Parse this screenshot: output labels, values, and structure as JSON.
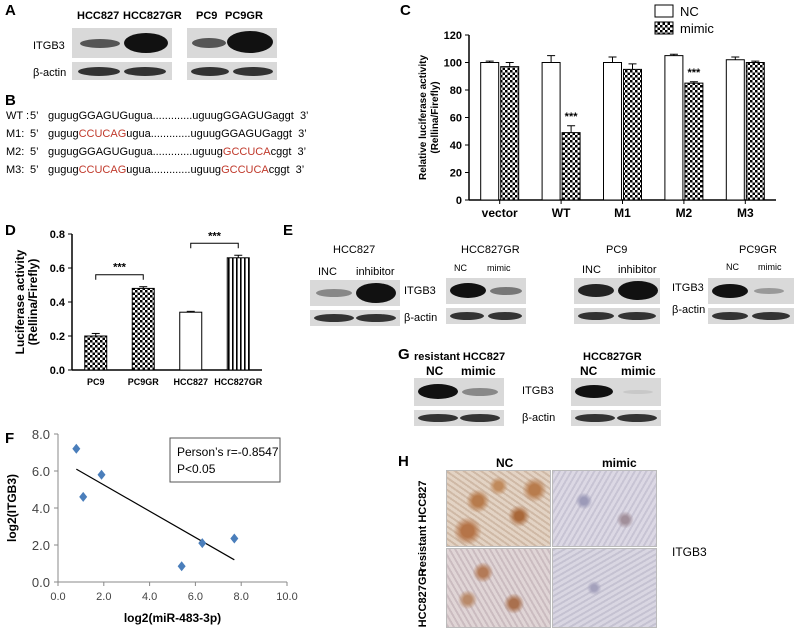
{
  "panelA": {
    "letter": "A",
    "cols": [
      "HCC827",
      "HCC827GR",
      "PC9",
      "PC9GR"
    ],
    "rows": [
      "ITGB3",
      "β-actin"
    ]
  },
  "panelB": {
    "letter": "B",
    "rows": [
      {
        "label": "WT :",
        "p5": "5’",
        "seq": [
          [
            "gugug",
            ""
          ],
          [
            "GGAGU",
            ""
          ],
          [
            "Gugua.............uguug",
            ""
          ],
          [
            "GGAGU",
            ""
          ],
          [
            "Gaggt",
            ""
          ]
        ],
        "p3": "3’"
      },
      {
        "label": "M1:",
        "p5": "5’",
        "seq": [
          [
            "gugug",
            ""
          ],
          [
            "CCUCAG",
            "red"
          ],
          [
            "ugua.............uguug",
            ""
          ],
          [
            "GGAGU",
            ""
          ],
          [
            "Gaggt",
            ""
          ]
        ],
        "p3": "3’"
      },
      {
        "label": "M2:",
        "p5": "5’",
        "seq": [
          [
            "gugug",
            ""
          ],
          [
            "GGAGU",
            ""
          ],
          [
            "Gugua.............uguug",
            ""
          ],
          [
            "GCCUCA",
            "red"
          ],
          [
            "cggt",
            ""
          ]
        ],
        "p3": "3’"
      },
      {
        "label": "M3:",
        "p5": "5’",
        "seq": [
          [
            "gugug",
            ""
          ],
          [
            "CCUCAG",
            "red"
          ],
          [
            "ugua.............uguug",
            ""
          ],
          [
            "GCCUCA",
            "red"
          ],
          [
            "cggt",
            ""
          ]
        ],
        "p3": "3’"
      }
    ]
  },
  "panelC": {
    "letter": "C",
    "chart_data": {
      "type": "bar",
      "categories": [
        "vector",
        "WT",
        "M1",
        "M2",
        "M3"
      ],
      "series": [
        {
          "name": "NC",
          "values": [
            100,
            100,
            100,
            105,
            102
          ],
          "errors": [
            1,
            5,
            4,
            1,
            2
          ]
        },
        {
          "name": "mimic",
          "values": [
            97,
            49,
            95,
            85,
            100
          ],
          "errors": [
            3,
            5,
            4,
            1,
            1
          ]
        }
      ],
      "ylabel": "Relative luciferase activity (Rellina/Firefly)",
      "ylim": [
        0,
        120
      ],
      "yticks": [
        "0",
        "20",
        "40",
        "60",
        "80",
        "100",
        "120"
      ],
      "annotations": [
        "***",
        "***"
      ],
      "legend": "top-right"
    }
  },
  "panelD": {
    "letter": "D",
    "chart_data": {
      "type": "bar",
      "categories": [
        "PC9",
        "PC9GR",
        "HCC827",
        "HCC827GR"
      ],
      "values": [
        0.2,
        0.48,
        0.34,
        0.66
      ],
      "errors": [
        0.015,
        0.01,
        0.005,
        0.015
      ],
      "ylabel": "Luciferase activity (Rellina/Firefly)",
      "ylim": [
        0,
        0.8
      ],
      "yticks": [
        "0.0",
        "0.2",
        "0.4",
        "0.6",
        "0.8"
      ],
      "annotations": [
        "***",
        "***"
      ]
    }
  },
  "panelE": {
    "letter": "E",
    "groups": [
      {
        "title": "HCC827",
        "lanes": [
          "INC",
          "inhibitor"
        ],
        "protein": "ITGB3",
        "control": "β-actin"
      },
      {
        "title": "HCC827GR",
        "lanes": [
          "NC",
          "mimic"
        ]
      },
      {
        "title": "PC9",
        "lanes": [
          "INC",
          "inhibitor"
        ]
      },
      {
        "title": "PC9GR",
        "lanes": [
          "NC",
          "mimic"
        ],
        "protein": "ITGB3",
        "control": "β-actin"
      }
    ]
  },
  "panelF": {
    "letter": "F",
    "chart_data": {
      "type": "scatter",
      "x": [
        0.8,
        1.1,
        1.9,
        5.4,
        6.3,
        7.7
      ],
      "y": [
        7.2,
        4.6,
        5.8,
        0.85,
        2.1,
        2.35
      ],
      "trendline": {
        "x0": 0.8,
        "y0": 6.1,
        "x1": 7.7,
        "y1": 1.2
      },
      "xlabel": "log2(miR-483-3p)",
      "ylabel": "log2(ITGB3)",
      "xlim": [
        0,
        10
      ],
      "ylim": [
        0,
        8
      ],
      "xticks": [
        "0.0",
        "2.0",
        "4.0",
        "6.0",
        "8.0",
        "10.0"
      ],
      "yticks": [
        "0.0",
        "2.0",
        "4.0",
        "6.0",
        "8.0"
      ],
      "annotation_r": "Person’s r=-0.8547",
      "annotation_p": "P<0.05",
      "color": "#4a7ebb"
    }
  },
  "panelG": {
    "letter": "G",
    "left_title": "resistant HCC827",
    "right_title": "HCC827GR",
    "lanes": [
      "NC",
      "mimic"
    ],
    "protein": "ITGB3",
    "control": "β-actin"
  },
  "panelH": {
    "letter": "H",
    "cols": [
      "NC",
      "mimic"
    ],
    "rows": [
      "resistant HCC827",
      "HCC827GR"
    ],
    "stain": "ITGB3"
  }
}
